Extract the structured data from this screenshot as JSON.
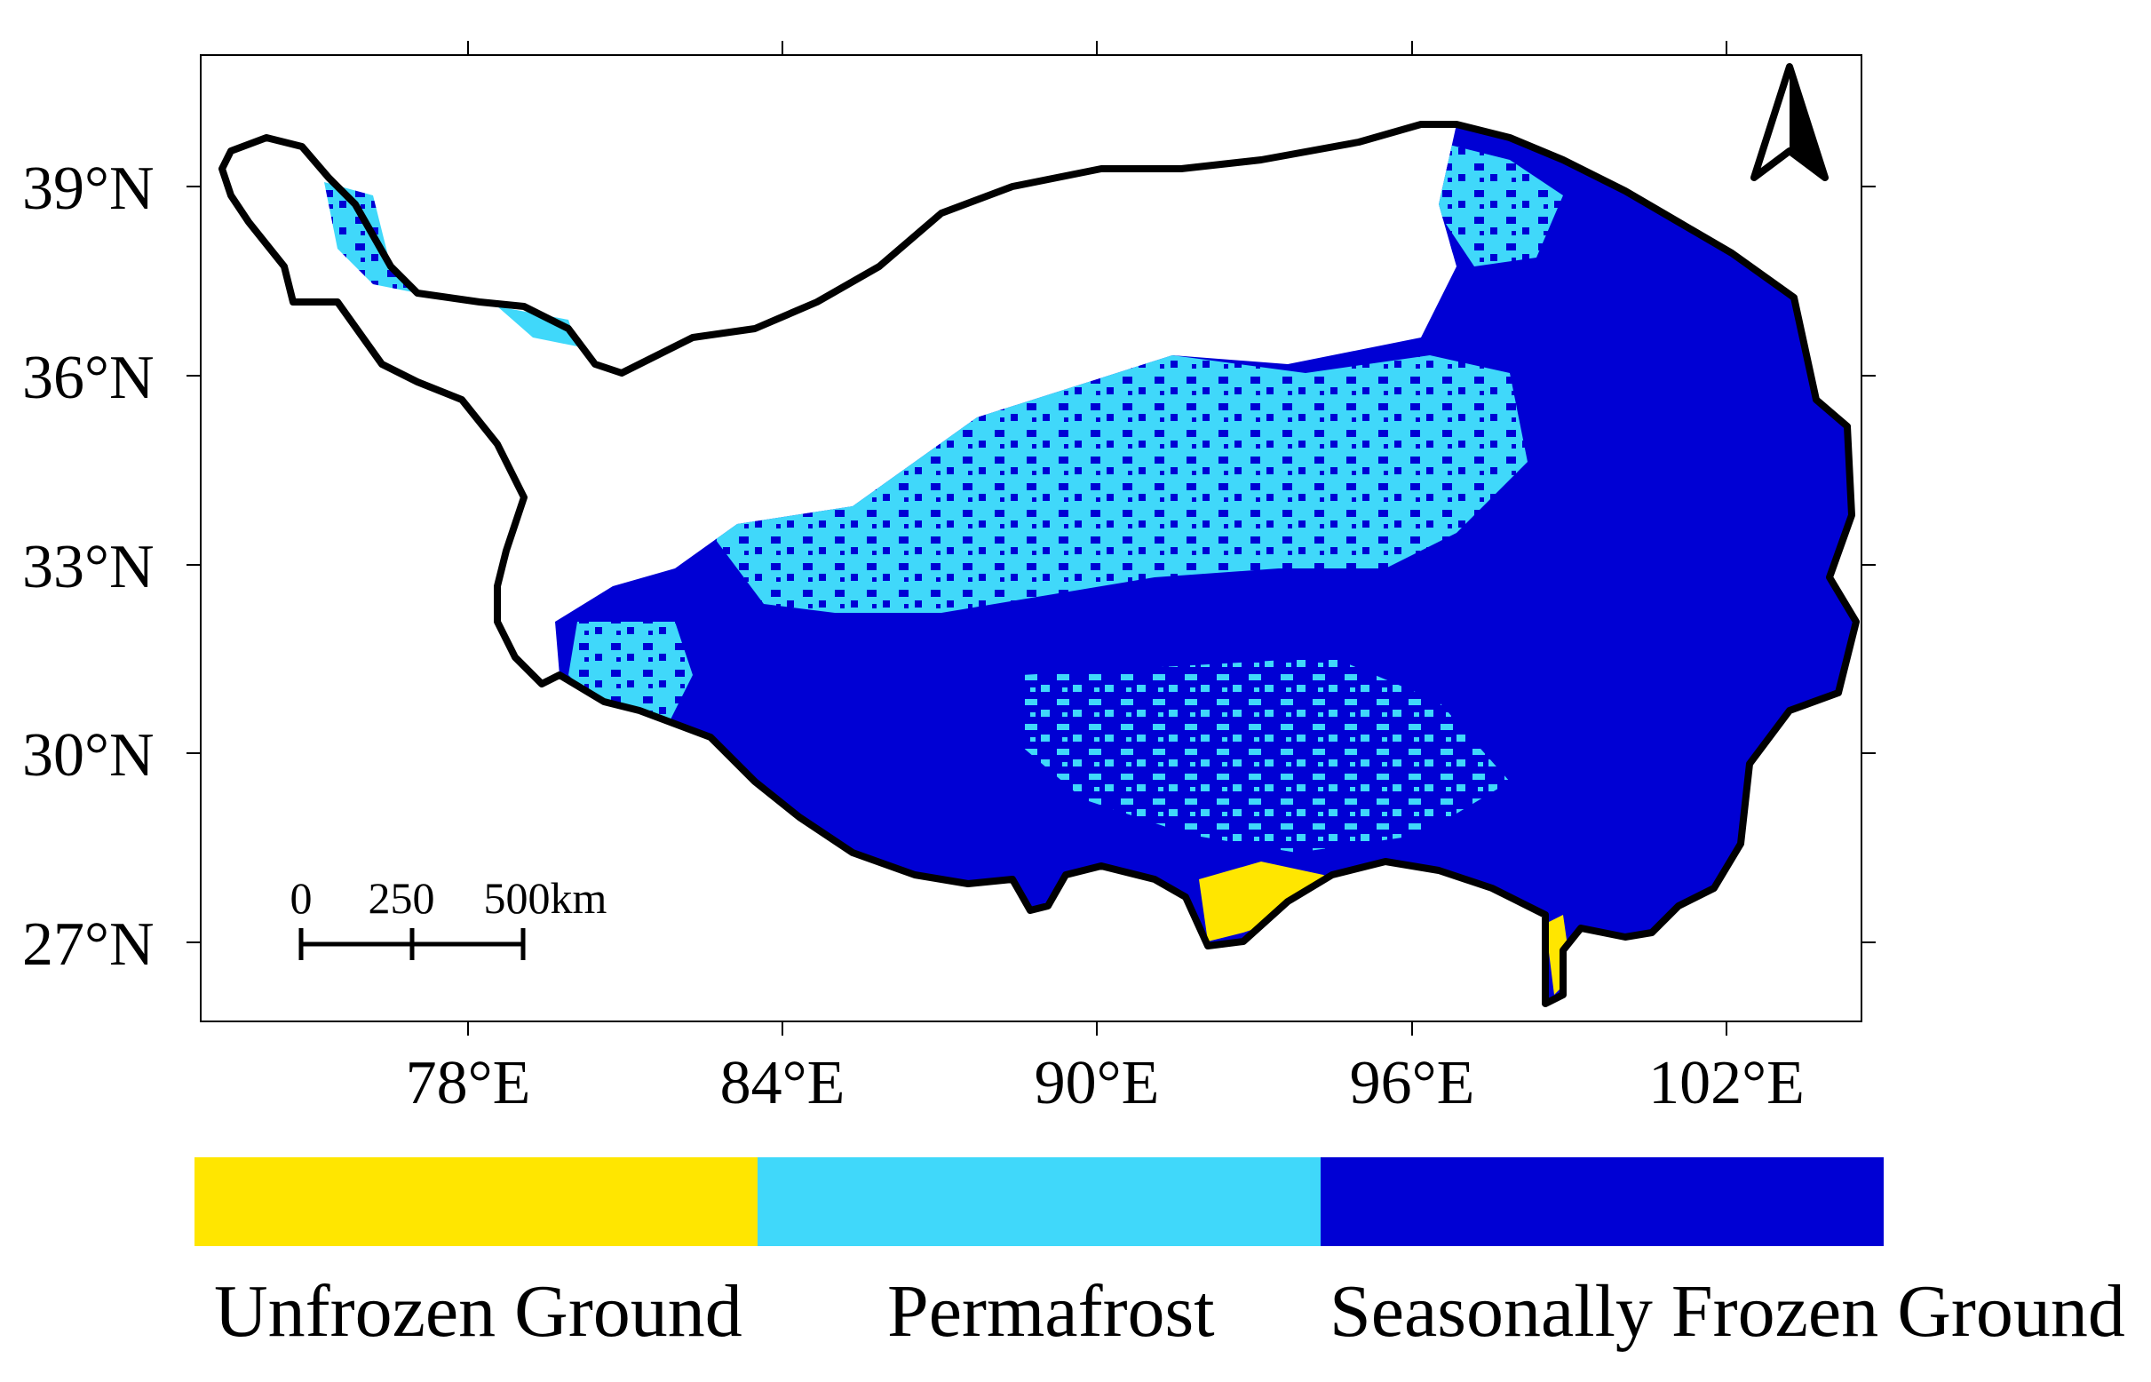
{
  "map": {
    "lat_labels": [
      "39°N",
      "36°N",
      "33°N",
      "30°N",
      "27°N"
    ],
    "lon_labels": [
      "78°E",
      "84°E",
      "90°E",
      "96°E",
      "102°E"
    ],
    "scale_bar": {
      "labels": [
        "0",
        "250",
        "500km"
      ]
    },
    "north_arrow_icon": "north-arrow-icon",
    "classes": [
      {
        "name": "Unfrozen Ground",
        "color": "#FFE600"
      },
      {
        "name": "Permafrost",
        "color": "#40D8FA"
      },
      {
        "name": "Seasonally Frozen Ground",
        "color": "#0000D4"
      }
    ]
  },
  "legend": {
    "labels": [
      "Unfrozen Ground",
      "Permafrost",
      "Seasonally Frozen Ground"
    ]
  }
}
